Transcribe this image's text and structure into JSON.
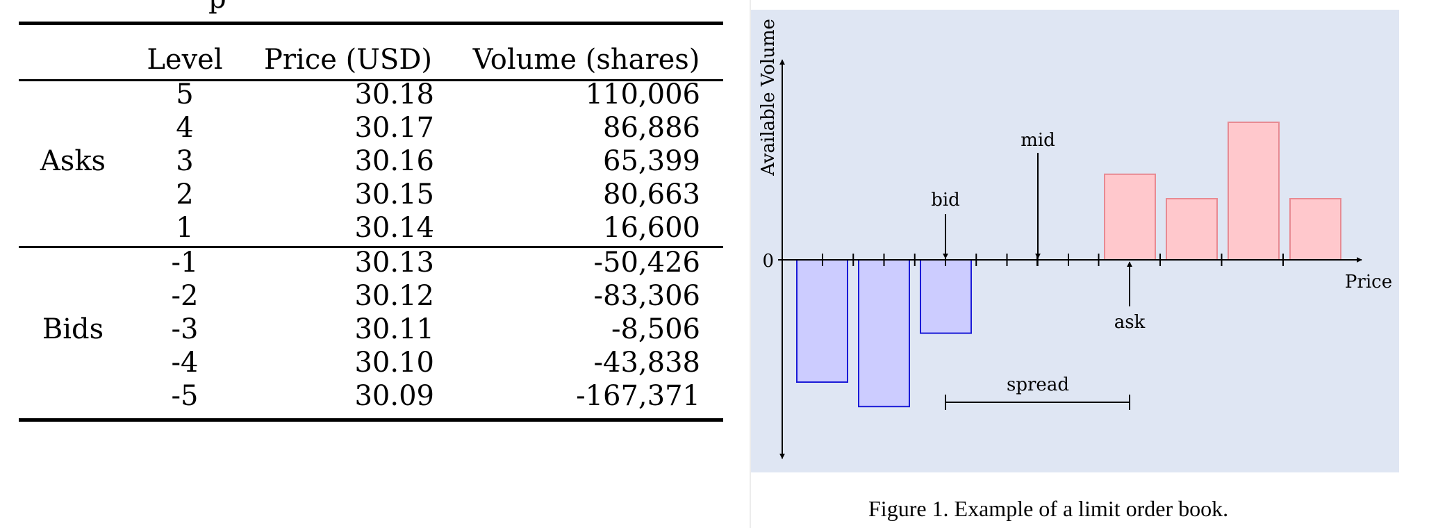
{
  "table": {
    "top_fragment": "p",
    "headers": {
      "level": "Level",
      "price": "Price (USD)",
      "volume": "Volume (shares)"
    },
    "groups": [
      {
        "label": "Asks",
        "rows": [
          {
            "level": "5",
            "price": "30.18",
            "volume": "110,006"
          },
          {
            "level": "4",
            "price": "30.17",
            "volume": "86,886"
          },
          {
            "level": "3",
            "price": "30.16",
            "volume": "65,399"
          },
          {
            "level": "2",
            "price": "30.15",
            "volume": "80,663"
          },
          {
            "level": "1",
            "price": "30.14",
            "volume": "16,600"
          }
        ]
      },
      {
        "label": "Bids",
        "rows": [
          {
            "level": "-1",
            "price": "30.13",
            "volume": "-50,426"
          },
          {
            "level": "-2",
            "price": "30.12",
            "volume": "-83,306"
          },
          {
            "level": "-3",
            "price": "30.11",
            "volume": "-8,506"
          },
          {
            "level": "-4",
            "price": "30.10",
            "volume": "-43,838"
          },
          {
            "level": "-5",
            "price": "30.09",
            "volume": "-167,371"
          }
        ]
      }
    ]
  },
  "figure": {
    "ylabel": "Available Volume",
    "xlabel": "Price",
    "zero_label": "0",
    "annotations": {
      "bid": "bid",
      "mid": "mid",
      "ask": "ask",
      "spread": "spread"
    },
    "caption": "Figure 1.  Example of a limit order book.",
    "colors": {
      "panel": "#dfe6f3",
      "bid_fill": "#ccccff",
      "bid_stroke": "#1a1ad6",
      "ask_fill": "#ffc8cc",
      "ask_stroke": "#e88a92"
    }
  }
}
